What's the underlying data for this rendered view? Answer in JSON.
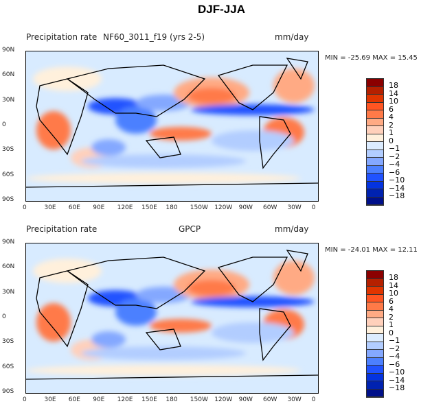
{
  "title": "DJF-JJA",
  "panels": [
    {
      "left_title": "Precipitation rate",
      "center_title": "NF60_3011_f19 (yrs 2-5)",
      "units": "mm/day",
      "minmax": "MIN = -25.69 MAX =  15.45"
    },
    {
      "left_title": "Precipitation rate",
      "center_title": "GPCP",
      "units": "mm/day",
      "minmax": "MIN = -24.01 MAX =  12.11"
    }
  ],
  "lat_ticks": [
    "90N",
    "60N",
    "30N",
    "0",
    "30S",
    "60S",
    "90S"
  ],
  "lon_ticks": [
    "0",
    "30E",
    "60E",
    "90E",
    "120E",
    "150E",
    "180",
    "150W",
    "120W",
    "90W",
    "60W",
    "30W",
    "0"
  ],
  "colorbar": {
    "labels": [
      "18",
      "14",
      "10",
      "6",
      "4",
      "2",
      "1",
      "0",
      "−1",
      "−2",
      "−4",
      "−6",
      "−10",
      "−14",
      "−18"
    ],
    "colors": [
      "#8b0000",
      "#b52000",
      "#e03500",
      "#ff5522",
      "#ff7a48",
      "#ffaa84",
      "#ffd0bb",
      "#fff0dc",
      "#dcecff",
      "#b2cdff",
      "#84a8ff",
      "#4c80ff",
      "#2052ff",
      "#0433e0",
      "#0022b0",
      "#00108a"
    ]
  }
}
